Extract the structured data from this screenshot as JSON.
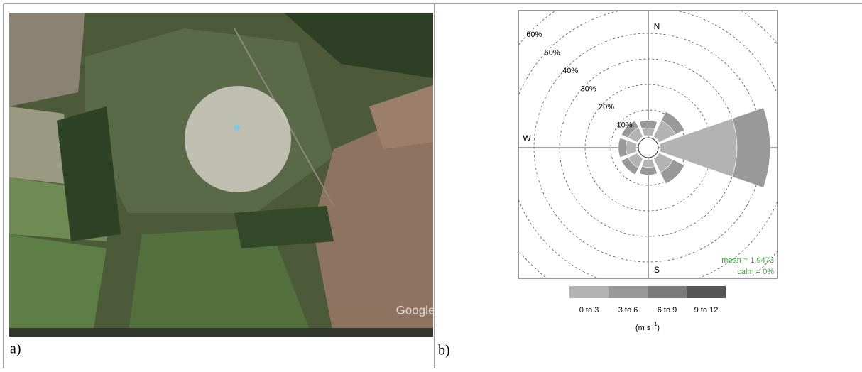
{
  "panel_labels": [
    "a)",
    "b)"
  ],
  "map": {
    "watermark": "Google"
  },
  "chart_data": {
    "type": "windrose",
    "categories": [
      "N",
      null,
      null,
      null,
      "S",
      null,
      "W",
      null
    ],
    "series": [
      {
        "name": "0 to 3",
        "color": "#b3b3b3",
        "values": [
          3,
          7,
          30,
          6,
          3,
          4,
          4,
          4
        ]
      },
      {
        "name": "3 to 6",
        "color": "#999999",
        "values": [
          3,
          4,
          13,
          5,
          3,
          3,
          3,
          3
        ]
      },
      {
        "name": "6 to 9",
        "color": "#7a7a7a",
        "values": [
          0,
          0,
          0,
          0,
          0,
          0,
          0,
          0
        ]
      },
      {
        "name": "9 to 12",
        "color": "#555555",
        "values": [
          0,
          0,
          0,
          0,
          0,
          0,
          0,
          0
        ]
      }
    ],
    "rlim": [
      0,
      60
    ],
    "rticks": [
      {
        "value": 10,
        "label": "10%"
      },
      {
        "value": 20,
        "label": "20%"
      },
      {
        "value": 30,
        "label": "30%"
      },
      {
        "value": 40,
        "label": "40%"
      },
      {
        "value": 50,
        "label": "50%"
      },
      {
        "value": 60,
        "label": "60%"
      }
    ],
    "annotations": [
      "mean = 1.9473",
      "calm = 0%"
    ],
    "unit_label": {
      "base": "(m s",
      "exponent": "−1",
      "close": ")"
    }
  }
}
